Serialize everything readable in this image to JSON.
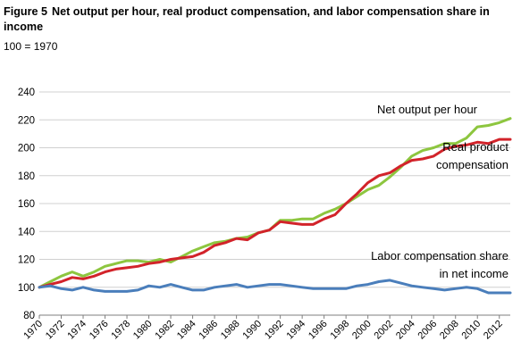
{
  "figure": {
    "number": "Figure 5",
    "title": "Net output per hour, real product compensation, and labor compensation share in income"
  },
  "chart_data": {
    "type": "line",
    "index_note": "100 = 1970",
    "ylim": [
      80,
      240
    ],
    "yticks": [
      80,
      100,
      120,
      140,
      160,
      180,
      200,
      220,
      240
    ],
    "xticks": [
      1970,
      1972,
      1974,
      1976,
      1978,
      1980,
      1982,
      1984,
      1986,
      1988,
      1990,
      1992,
      1994,
      1996,
      1998,
      2000,
      2002,
      2004,
      2006,
      2008,
      2010,
      2012
    ],
    "xlim": [
      1970,
      2013
    ],
    "grid": "horizontal",
    "series": [
      {
        "name": "Net output per hour",
        "color": "#8DC63F",
        "x": [
          1970,
          1971,
          1972,
          1973,
          1974,
          1975,
          1976,
          1977,
          1978,
          1979,
          1980,
          1981,
          1982,
          1983,
          1984,
          1985,
          1986,
          1987,
          1988,
          1989,
          1990,
          1991,
          1992,
          1993,
          1994,
          1995,
          1996,
          1997,
          1998,
          1999,
          2000,
          2001,
          2002,
          2003,
          2004,
          2005,
          2006,
          2007,
          2008,
          2009,
          2010,
          2011,
          2012,
          2013
        ],
        "values": [
          100,
          104,
          108,
          111,
          108,
          111,
          115,
          117,
          119,
          119,
          118,
          120,
          118,
          122,
          126,
          129,
          132,
          133,
          135,
          136,
          139,
          141,
          148,
          148,
          149,
          149,
          153,
          156,
          160,
          165,
          170,
          173,
          179,
          186,
          194,
          198,
          200,
          203,
          203,
          207,
          215,
          216,
          218,
          221
        ]
      },
      {
        "name": "Real product compensation",
        "color": "#D2232A",
        "x": [
          1970,
          1971,
          1972,
          1973,
          1974,
          1975,
          1976,
          1977,
          1978,
          1979,
          1980,
          1981,
          1982,
          1983,
          1984,
          1985,
          1986,
          1987,
          1988,
          1989,
          1990,
          1991,
          1992,
          1993,
          1994,
          1995,
          1996,
          1997,
          1998,
          1999,
          2000,
          2001,
          2002,
          2003,
          2004,
          2005,
          2006,
          2007,
          2008,
          2009,
          2010,
          2011,
          2012,
          2013
        ],
        "values": [
          100,
          102,
          104,
          107,
          106,
          108,
          111,
          113,
          114,
          115,
          117,
          118,
          120,
          121,
          122,
          125,
          130,
          132,
          135,
          134,
          139,
          141,
          147,
          146,
          145,
          145,
          149,
          152,
          160,
          167,
          175,
          180,
          182,
          187,
          191,
          192,
          194,
          199,
          201,
          202,
          204,
          203,
          206,
          206
        ]
      },
      {
        "name": "Labor compensation share in net income",
        "color": "#4A7EBB",
        "x": [
          1970,
          1971,
          1972,
          1973,
          1974,
          1975,
          1976,
          1977,
          1978,
          1979,
          1980,
          1981,
          1982,
          1983,
          1984,
          1985,
          1986,
          1987,
          1988,
          1989,
          1990,
          1991,
          1992,
          1993,
          1994,
          1995,
          1996,
          1997,
          1998,
          1999,
          2000,
          2001,
          2002,
          2003,
          2004,
          2005,
          2006,
          2007,
          2008,
          2009,
          2010,
          2011,
          2012,
          2013
        ],
        "values": [
          100,
          101,
          99,
          98,
          100,
          98,
          97,
          97,
          97,
          98,
          101,
          100,
          102,
          100,
          98,
          98,
          100,
          101,
          102,
          100,
          101,
          102,
          102,
          101,
          100,
          99,
          99,
          99,
          99,
          101,
          102,
          104,
          105,
          103,
          101,
          100,
          99,
          98,
          99,
          100,
          99,
          96,
          96,
          96
        ]
      }
    ],
    "annotations": [
      {
        "series": 0,
        "lines": [
          "Net output per hour"
        ]
      },
      {
        "series": 1,
        "lines": [
          "Real product",
          "compensation"
        ]
      },
      {
        "series": 2,
        "lines": [
          "Labor compensation share",
          "in net income"
        ]
      }
    ]
  }
}
